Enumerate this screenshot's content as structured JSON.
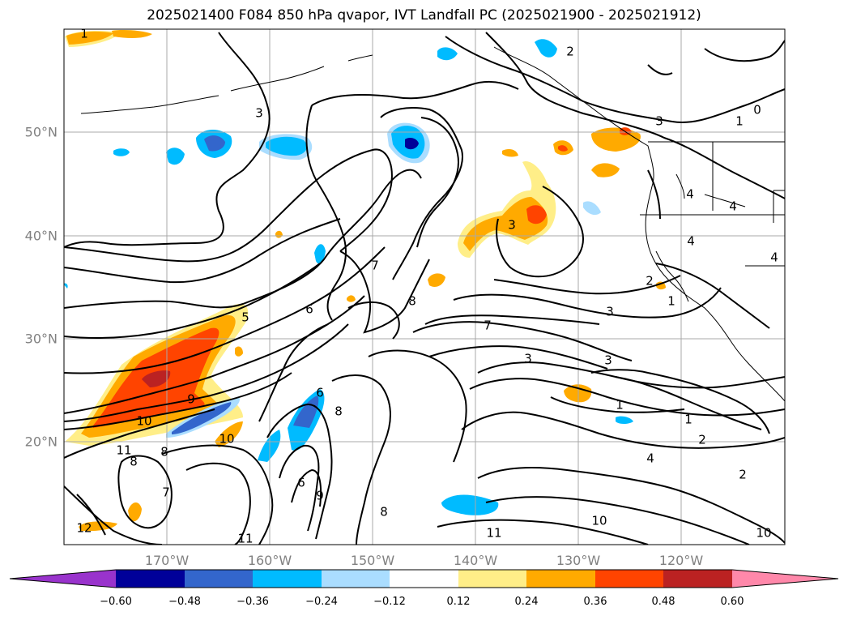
{
  "title": "2025021400 F084 850 hPa qvapor, IVT Landfall PC (2025021900 - 2025021912)",
  "lon_labels": [
    "170°W",
    "160°W",
    "150°W",
    "140°W",
    "130°W",
    "120°W"
  ],
  "lat_labels": [
    "50°N",
    "40°N",
    "30°N",
    "20°N"
  ],
  "colorbar": {
    "colors": [
      "#9933cc",
      "#000099",
      "#3366cc",
      "#00bbff",
      "#aaddff",
      "#ffffff",
      "#ffee88",
      "#ffaa00",
      "#ff4400",
      "#bb2222",
      "#ff88aa"
    ],
    "tick_labels": [
      "−0.60",
      "−0.48",
      "−0.36",
      "−0.24",
      "−0.12",
      "0.12",
      "0.24",
      "0.36",
      "0.48",
      "0.60"
    ]
  },
  "contour_labels": [
    "1",
    "2",
    "3",
    "0",
    "1",
    "3",
    "4",
    "4",
    "4",
    "4",
    "5",
    "6",
    "7",
    "8",
    "3",
    "3",
    "3",
    "3",
    "2",
    "1",
    "7",
    "9",
    "10",
    "11",
    "8",
    "8",
    "10",
    "7",
    "6",
    "6",
    "8",
    "9",
    "1",
    "1",
    "2",
    "4",
    "2",
    "10",
    "10",
    "11",
    "12",
    "11",
    "8"
  ]
}
